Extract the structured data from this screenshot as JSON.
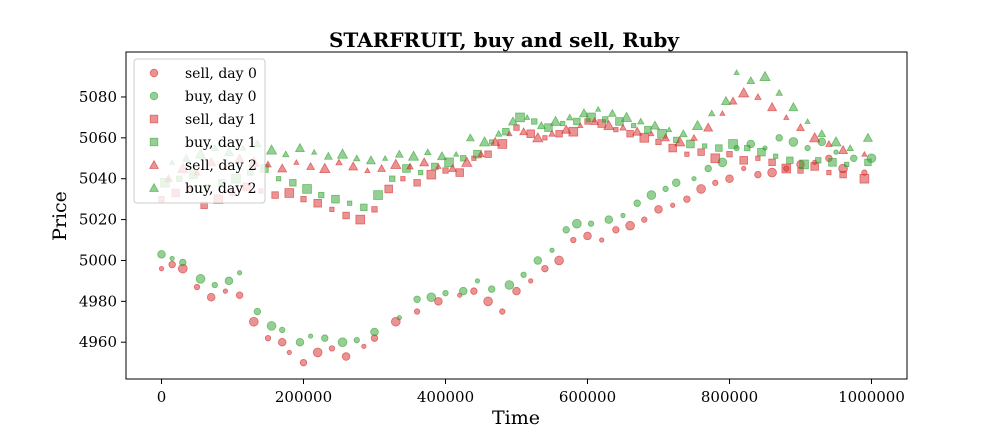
{
  "chart_data": {
    "type": "scatter",
    "title": "STARFRUIT, buy and sell, Ruby",
    "xlabel": "Time",
    "ylabel": "Price",
    "xlim": [
      -50000,
      1050000
    ],
    "ylim": [
      4942,
      5102
    ],
    "x_ticks": [
      0,
      200000,
      400000,
      600000,
      800000,
      1000000
    ],
    "y_ticks": [
      4960,
      4980,
      5000,
      5020,
      5040,
      5060,
      5080
    ],
    "legend_position": "top-left",
    "grid": false,
    "colors": {
      "sell": "#d62728",
      "buy": "#2ca02c"
    },
    "series": [
      {
        "name": "sell, day 0",
        "side": "sell",
        "marker": "circle",
        "points": [
          [
            0,
            4996
          ],
          [
            15000,
            4998
          ],
          [
            30000,
            4996
          ],
          [
            50000,
            4987
          ],
          [
            70000,
            4982
          ],
          [
            90000,
            4985
          ],
          [
            110000,
            4983
          ],
          [
            130000,
            4970
          ],
          [
            150000,
            4962
          ],
          [
            170000,
            4960
          ],
          [
            180000,
            4955
          ],
          [
            200000,
            4950
          ],
          [
            220000,
            4955
          ],
          [
            240000,
            4957
          ],
          [
            260000,
            4953
          ],
          [
            285000,
            4958
          ],
          [
            300000,
            4962
          ],
          [
            330000,
            4970
          ],
          [
            360000,
            4975
          ],
          [
            390000,
            4980
          ],
          [
            420000,
            4983
          ],
          [
            440000,
            4985
          ],
          [
            460000,
            4980
          ],
          [
            480000,
            4975
          ],
          [
            500000,
            4985
          ],
          [
            520000,
            4990
          ],
          [
            540000,
            4996
          ],
          [
            560000,
            5000
          ],
          [
            580000,
            5010
          ],
          [
            600000,
            5012
          ],
          [
            620000,
            5010
          ],
          [
            640000,
            5015
          ],
          [
            660000,
            5017
          ],
          [
            680000,
            5020
          ],
          [
            700000,
            5025
          ],
          [
            720000,
            5027
          ],
          [
            740000,
            5030
          ],
          [
            760000,
            5035
          ],
          [
            780000,
            5038
          ],
          [
            800000,
            5040
          ],
          [
            820000,
            5045
          ],
          [
            840000,
            5042
          ],
          [
            860000,
            5043
          ],
          [
            880000,
            5045
          ],
          [
            900000,
            5047
          ],
          [
            920000,
            5048
          ],
          [
            940000,
            5050
          ],
          [
            960000,
            5045
          ],
          [
            990000,
            5043
          ]
        ]
      },
      {
        "name": "buy, day 0",
        "side": "buy",
        "marker": "circle",
        "points": [
          [
            0,
            5003
          ],
          [
            15000,
            5001
          ],
          [
            30000,
            4999
          ],
          [
            55000,
            4991
          ],
          [
            75000,
            4988
          ],
          [
            95000,
            4990
          ],
          [
            110000,
            4994
          ],
          [
            135000,
            4975
          ],
          [
            155000,
            4968
          ],
          [
            170000,
            4966
          ],
          [
            195000,
            4960
          ],
          [
            210000,
            4963
          ],
          [
            230000,
            4962
          ],
          [
            255000,
            4960
          ],
          [
            275000,
            4961
          ],
          [
            300000,
            4965
          ],
          [
            335000,
            4972
          ],
          [
            360000,
            4981
          ],
          [
            380000,
            4982
          ],
          [
            400000,
            4984
          ],
          [
            425000,
            4985
          ],
          [
            445000,
            4990
          ],
          [
            465000,
            4986
          ],
          [
            490000,
            4988
          ],
          [
            510000,
            4993
          ],
          [
            530000,
            5000
          ],
          [
            550000,
            5005
          ],
          [
            570000,
            5015
          ],
          [
            585000,
            5018
          ],
          [
            605000,
            5018
          ],
          [
            630000,
            5020
          ],
          [
            650000,
            5022
          ],
          [
            670000,
            5028
          ],
          [
            690000,
            5032
          ],
          [
            710000,
            5035
          ],
          [
            725000,
            5038
          ],
          [
            750000,
            5040
          ],
          [
            770000,
            5045
          ],
          [
            790000,
            5048
          ],
          [
            810000,
            5055
          ],
          [
            830000,
            5057
          ],
          [
            850000,
            5055
          ],
          [
            870000,
            5060
          ],
          [
            890000,
            5058
          ],
          [
            910000,
            5055
          ],
          [
            930000,
            5058
          ],
          [
            950000,
            5053
          ],
          [
            975000,
            5050
          ],
          [
            1000000,
            5050
          ]
        ]
      },
      {
        "name": "sell, day 1",
        "side": "sell",
        "marker": "square",
        "points": [
          [
            0,
            5030
          ],
          [
            20000,
            5033
          ],
          [
            40000,
            5035
          ],
          [
            60000,
            5027
          ],
          [
            80000,
            5030
          ],
          [
            100000,
            5033
          ],
          [
            120000,
            5036
          ],
          [
            140000,
            5034
          ],
          [
            160000,
            5032
          ],
          [
            180000,
            5033
          ],
          [
            200000,
            5030
          ],
          [
            220000,
            5028
          ],
          [
            240000,
            5025
          ],
          [
            260000,
            5022
          ],
          [
            280000,
            5020
          ],
          [
            300000,
            5025
          ],
          [
            320000,
            5035
          ],
          [
            340000,
            5040
          ],
          [
            360000,
            5038
          ],
          [
            380000,
            5042
          ],
          [
            400000,
            5044
          ],
          [
            420000,
            5043
          ],
          [
            440000,
            5050
          ],
          [
            460000,
            5052
          ],
          [
            480000,
            5057
          ],
          [
            500000,
            5065
          ],
          [
            520000,
            5062
          ],
          [
            540000,
            5060
          ],
          [
            560000,
            5062
          ],
          [
            580000,
            5063
          ],
          [
            600000,
            5068
          ],
          [
            620000,
            5067
          ],
          [
            640000,
            5064
          ],
          [
            660000,
            5062
          ],
          [
            680000,
            5060
          ],
          [
            700000,
            5058
          ],
          [
            720000,
            5055
          ],
          [
            740000,
            5052
          ],
          [
            760000,
            5053
          ],
          [
            780000,
            5050
          ],
          [
            800000,
            5052
          ],
          [
            820000,
            5049
          ],
          [
            840000,
            5050
          ],
          [
            860000,
            5048
          ],
          [
            880000,
            5045
          ],
          [
            900000,
            5044
          ],
          [
            920000,
            5046
          ],
          [
            940000,
            5043
          ],
          [
            960000,
            5042
          ],
          [
            990000,
            5040
          ]
        ]
      },
      {
        "name": "buy, day 1",
        "side": "buy",
        "marker": "square",
        "points": [
          [
            5000,
            5038
          ],
          [
            25000,
            5040
          ],
          [
            45000,
            5042
          ],
          [
            65000,
            5036
          ],
          [
            85000,
            5038
          ],
          [
            105000,
            5040
          ],
          [
            125000,
            5043
          ],
          [
            145000,
            5045
          ],
          [
            165000,
            5040
          ],
          [
            185000,
            5038
          ],
          [
            205000,
            5035
          ],
          [
            225000,
            5032
          ],
          [
            245000,
            5030
          ],
          [
            265000,
            5028
          ],
          [
            285000,
            5026
          ],
          [
            305000,
            5032
          ],
          [
            325000,
            5040
          ],
          [
            345000,
            5045
          ],
          [
            365000,
            5043
          ],
          [
            385000,
            5046
          ],
          [
            405000,
            5048
          ],
          [
            425000,
            5050
          ],
          [
            445000,
            5052
          ],
          [
            465000,
            5058
          ],
          [
            485000,
            5063
          ],
          [
            505000,
            5070
          ],
          [
            525000,
            5068
          ],
          [
            545000,
            5065
          ],
          [
            565000,
            5067
          ],
          [
            585000,
            5068
          ],
          [
            605000,
            5070
          ],
          [
            625000,
            5069
          ],
          [
            645000,
            5068
          ],
          [
            665000,
            5066
          ],
          [
            685000,
            5064
          ],
          [
            705000,
            5062
          ],
          [
            725000,
            5059
          ],
          [
            745000,
            5057
          ],
          [
            765000,
            5056
          ],
          [
            785000,
            5055
          ],
          [
            805000,
            5057
          ],
          [
            825000,
            5055
          ],
          [
            845000,
            5053
          ],
          [
            865000,
            5051
          ],
          [
            885000,
            5049
          ],
          [
            905000,
            5047
          ],
          [
            925000,
            5049
          ],
          [
            945000,
            5048
          ],
          [
            965000,
            5047
          ],
          [
            995000,
            5048
          ]
        ]
      },
      {
        "name": "sell, day 2",
        "side": "sell",
        "marker": "triangle",
        "points": [
          [
            10000,
            5040
          ],
          [
            30000,
            5045
          ],
          [
            50000,
            5043
          ],
          [
            70000,
            5048
          ],
          [
            90000,
            5046
          ],
          [
            110000,
            5050
          ],
          [
            130000,
            5048
          ],
          [
            150000,
            5047
          ],
          [
            170000,
            5045
          ],
          [
            190000,
            5048
          ],
          [
            210000,
            5046
          ],
          [
            230000,
            5045
          ],
          [
            250000,
            5048
          ],
          [
            270000,
            5046
          ],
          [
            290000,
            5044
          ],
          [
            310000,
            5045
          ],
          [
            330000,
            5047
          ],
          [
            350000,
            5046
          ],
          [
            370000,
            5048
          ],
          [
            390000,
            5046
          ],
          [
            410000,
            5045
          ],
          [
            430000,
            5048
          ],
          [
            450000,
            5052
          ],
          [
            470000,
            5058
          ],
          [
            490000,
            5062
          ],
          [
            510000,
            5063
          ],
          [
            530000,
            5060
          ],
          [
            550000,
            5062
          ],
          [
            570000,
            5064
          ],
          [
            590000,
            5066
          ],
          [
            610000,
            5068
          ],
          [
            630000,
            5066
          ],
          [
            650000,
            5065
          ],
          [
            670000,
            5063
          ],
          [
            690000,
            5062
          ],
          [
            710000,
            5060
          ],
          [
            730000,
            5058
          ],
          [
            750000,
            5060
          ],
          [
            770000,
            5065
          ],
          [
            790000,
            5072
          ],
          [
            805000,
            5078
          ],
          [
            820000,
            5082
          ],
          [
            840000,
            5080
          ],
          [
            860000,
            5075
          ],
          [
            880000,
            5070
          ],
          [
            900000,
            5065
          ],
          [
            920000,
            5060
          ],
          [
            940000,
            5057
          ],
          [
            960000,
            5054
          ],
          [
            990000,
            5052
          ]
        ]
      },
      {
        "name": "buy, day 2",
        "side": "buy",
        "marker": "triangle",
        "points": [
          [
            15000,
            5048
          ],
          [
            35000,
            5050
          ],
          [
            55000,
            5052
          ],
          [
            75000,
            5055
          ],
          [
            95000,
            5053
          ],
          [
            115000,
            5055
          ],
          [
            135000,
            5057
          ],
          [
            155000,
            5054
          ],
          [
            175000,
            5052
          ],
          [
            195000,
            5055
          ],
          [
            215000,
            5053
          ],
          [
            235000,
            5051
          ],
          [
            255000,
            5052
          ],
          [
            275000,
            5050
          ],
          [
            295000,
            5049
          ],
          [
            315000,
            5050
          ],
          [
            335000,
            5052
          ],
          [
            355000,
            5051
          ],
          [
            375000,
            5053
          ],
          [
            395000,
            5051
          ],
          [
            415000,
            5052
          ],
          [
            435000,
            5060
          ],
          [
            455000,
            5058
          ],
          [
            475000,
            5062
          ],
          [
            495000,
            5068
          ],
          [
            515000,
            5070
          ],
          [
            535000,
            5066
          ],
          [
            555000,
            5068
          ],
          [
            575000,
            5070
          ],
          [
            595000,
            5072
          ],
          [
            615000,
            5074
          ],
          [
            635000,
            5072
          ],
          [
            655000,
            5070
          ],
          [
            675000,
            5068
          ],
          [
            695000,
            5066
          ],
          [
            715000,
            5064
          ],
          [
            735000,
            5062
          ],
          [
            755000,
            5066
          ],
          [
            775000,
            5072
          ],
          [
            795000,
            5078
          ],
          [
            810000,
            5092
          ],
          [
            830000,
            5088
          ],
          [
            850000,
            5090
          ],
          [
            870000,
            5082
          ],
          [
            890000,
            5075
          ],
          [
            910000,
            5068
          ],
          [
            930000,
            5062
          ],
          [
            950000,
            5058
          ],
          [
            970000,
            5055
          ],
          [
            995000,
            5060
          ]
        ]
      }
    ]
  }
}
